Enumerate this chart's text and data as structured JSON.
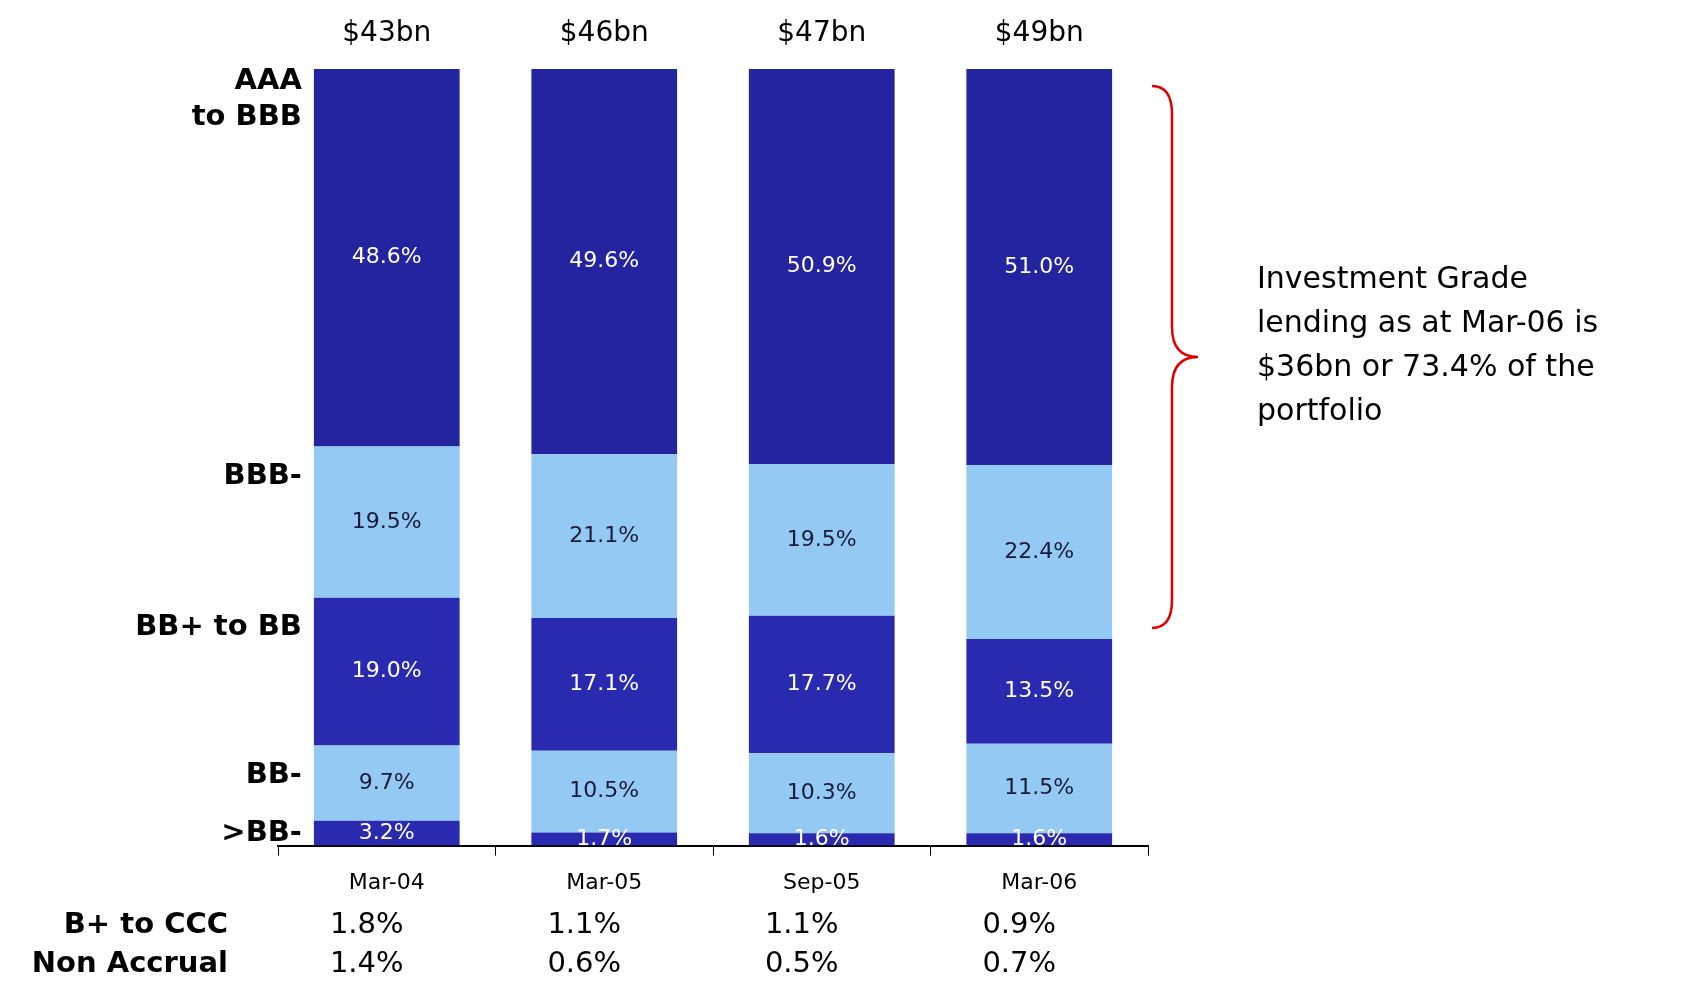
{
  "chart_data": {
    "type": "bar",
    "stacked": true,
    "categories": [
      "Mar-04",
      "Mar-05",
      "Sep-05",
      "Mar-06"
    ],
    "series": [
      {
        "name": ">BB-",
        "color": "#2a2ab0",
        "values": [
          3.2,
          1.7,
          1.6,
          1.6
        ],
        "value_labels": [
          "3.2%",
          "1.7%",
          "1.6%",
          "1.6%"
        ]
      },
      {
        "name": "BB-",
        "color": "#93c9f2",
        "values": [
          9.7,
          10.5,
          10.3,
          11.5
        ],
        "value_labels": [
          "9.7%",
          "10.5%",
          "10.3%",
          "11.5%"
        ]
      },
      {
        "name": "BB+ to BB",
        "color": "#2a2ab0",
        "values": [
          19.0,
          17.1,
          17.7,
          13.5
        ],
        "value_labels": [
          "19.0%",
          "17.1%",
          "17.7%",
          "13.5%"
        ]
      },
      {
        "name": "BBB-",
        "color": "#93c9f2",
        "values": [
          19.5,
          21.1,
          19.5,
          22.4
        ],
        "value_labels": [
          "19.5%",
          "21.1%",
          "19.5%",
          "22.4%"
        ]
      },
      {
        "name": "AAA to BBB",
        "color": "#2424a0",
        "values": [
          48.6,
          49.6,
          50.9,
          51.0
        ],
        "value_labels": [
          "48.6%",
          "49.6%",
          "50.9%",
          "51.0%"
        ]
      }
    ],
    "tick_labels": "x",
    "annotations": [
      "Investment Grade\nlending as at Mar-06 is\n$36bn or 73.4% of the\nportfolio",
      {
        "text": "$43bn",
        "x": "Mar-04",
        "y": 100
      },
      {
        "text": "$46bn",
        "x": "Mar-05",
        "y": 100
      },
      {
        "text": "$47bn",
        "x": "Sep-05",
        "y": 100
      },
      {
        "text": "$49bn",
        "x": "Mar-06",
        "y": 100
      },
      "B+ to CCC",
      "1.8%",
      "1.1%",
      "1.1%",
      "0.9%",
      "Non Accrual",
      "1.4%",
      "0.6%",
      "0.5%",
      "0.7%"
    ]
  }
}
